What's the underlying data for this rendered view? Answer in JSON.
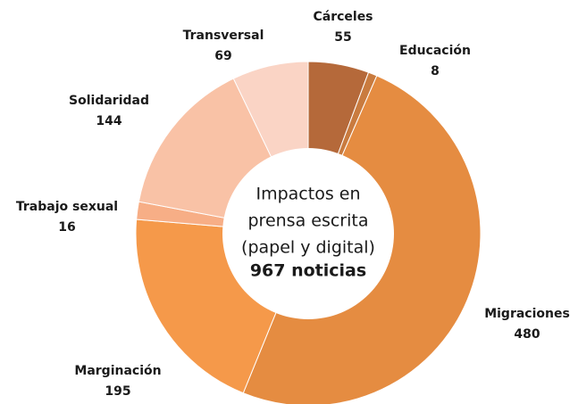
{
  "chart_data": {
    "type": "donut",
    "categories": [
      "Cárceles",
      "Educación",
      "Migraciones",
      "Marginación",
      "Trabajo sexual",
      "Solidaridad",
      "Transversal"
    ],
    "values": [
      55,
      8,
      480,
      195,
      16,
      144,
      69
    ],
    "colors": [
      "#b5693a",
      "#c97b3f",
      "#e58c41",
      "#f5994a",
      "#f7ae86",
      "#f9c2a6",
      "#fad4c5"
    ],
    "center_text": [
      "Impactos en",
      "prensa escrita",
      "(papel y digital)"
    ],
    "center_total": "967 noticias"
  }
}
